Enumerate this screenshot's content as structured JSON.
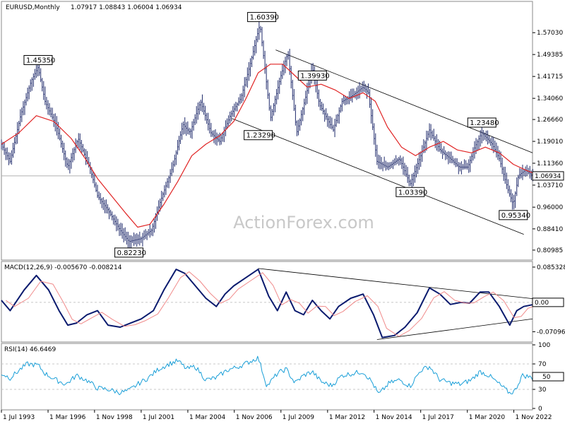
{
  "chart_data": {
    "type": "line",
    "header": {
      "symbol": "EURUSD,Monthly",
      "ohlc": "1.07917 1.08843 1.06004 1.06934",
      "macd": "MACD(12,26,9) -0.005670 -0.008214",
      "rsi": "RSI(14) 46.6469"
    },
    "watermark": "ActionForex.com",
    "price_axis": {
      "range": [
        0.78,
        1.64
      ],
      "ticks": [
        "1.57030",
        "1.49385",
        "1.41715",
        "1.34060",
        "1.26660",
        "1.19010",
        "1.11360",
        "1.03710",
        "0.96000",
        "0.88410",
        "0.80985"
      ],
      "current": "1.06934"
    },
    "macd_axis": {
      "range": [
        -0.0925,
        0.0955
      ],
      "ticks": [
        "0.085328",
        "0.00",
        "-0.070967"
      ],
      "current": "0.00"
    },
    "rsi_axis": {
      "range": [
        0,
        100
      ],
      "ticks": [
        "100",
        "70",
        "30",
        "0"
      ],
      "current": "50"
    },
    "x_axis": {
      "start_year": 1993.5,
      "end_year": 2023.9,
      "labels": [
        {
          "label": "1 Jul 1993",
          "t": 1993.5
        },
        {
          "label": "1 Mar 1996",
          "t": 1996.17
        },
        {
          "label": "1 Nov 1998",
          "t": 1998.83
        },
        {
          "label": "1 Jul 2001",
          "t": 2001.5
        },
        {
          "label": "1 Mar 2004",
          "t": 2004.17
        },
        {
          "label": "1 Nov 2006",
          "t": 2006.83
        },
        {
          "label": "1 Jul 2009",
          "t": 2009.5
        },
        {
          "label": "1 Mar 2012",
          "t": 2012.17
        },
        {
          "label": "1 Nov 2014",
          "t": 2014.83
        },
        {
          "label": "1 Jul 2017",
          "t": 2017.5
        },
        {
          "label": "1 Mar 2020",
          "t": 2020.17
        },
        {
          "label": "1 Nov 2022",
          "t": 2022.83
        }
      ]
    },
    "price_points": [
      [
        1993.5,
        1.18
      ],
      [
        1994.0,
        1.12
      ],
      [
        1994.6,
        1.28
      ],
      [
        1995.2,
        1.4
      ],
      [
        1995.6,
        1.45
      ],
      [
        1996.0,
        1.33
      ],
      [
        1996.6,
        1.25
      ],
      [
        1997.3,
        1.1
      ],
      [
        1997.9,
        1.2
      ],
      [
        1998.6,
        1.09
      ],
      [
        1999.0,
        1.0
      ],
      [
        1999.6,
        0.95
      ],
      [
        2000.3,
        0.88
      ],
      [
        2000.8,
        0.84
      ],
      [
        2001.5,
        0.85
      ],
      [
        2002.1,
        0.88
      ],
      [
        2002.6,
        0.98
      ],
      [
        2003.3,
        1.1
      ],
      [
        2003.9,
        1.25
      ],
      [
        2004.3,
        1.22
      ],
      [
        2004.9,
        1.33
      ],
      [
        2005.5,
        1.22
      ],
      [
        2006.0,
        1.19
      ],
      [
        2006.6,
        1.28
      ],
      [
        2007.2,
        1.34
      ],
      [
        2007.7,
        1.45
      ],
      [
        2008.3,
        1.6
      ],
      [
        2008.9,
        1.27
      ],
      [
        2009.5,
        1.42
      ],
      [
        2009.9,
        1.5
      ],
      [
        2010.4,
        1.22
      ],
      [
        2010.9,
        1.34
      ],
      [
        2011.3,
        1.45
      ],
      [
        2011.7,
        1.32
      ],
      [
        2012.5,
        1.23
      ],
      [
        2013.0,
        1.33
      ],
      [
        2013.6,
        1.35
      ],
      [
        2014.2,
        1.38
      ],
      [
        2014.5,
        1.36
      ],
      [
        2015.0,
        1.12
      ],
      [
        2015.6,
        1.1
      ],
      [
        2016.3,
        1.13
      ],
      [
        2016.9,
        1.04
      ],
      [
        2017.5,
        1.14
      ],
      [
        2018.0,
        1.23
      ],
      [
        2018.6,
        1.16
      ],
      [
        2019.2,
        1.13
      ],
      [
        2019.7,
        1.1
      ],
      [
        2020.2,
        1.1
      ],
      [
        2020.6,
        1.17
      ],
      [
        2021.0,
        1.22
      ],
      [
        2021.6,
        1.18
      ],
      [
        2022.0,
        1.13
      ],
      [
        2022.5,
        1.02
      ],
      [
        2022.8,
        0.97
      ],
      [
        2023.1,
        1.07
      ],
      [
        2023.5,
        1.09
      ],
      [
        2023.9,
        1.069
      ]
    ],
    "sma_points": [
      [
        1993.5,
        1.18
      ],
      [
        1994.5,
        1.22
      ],
      [
        1995.5,
        1.28
      ],
      [
        1996.5,
        1.26
      ],
      [
        1997.5,
        1.2
      ],
      [
        1998.3,
        1.13
      ],
      [
        1999.0,
        1.06
      ],
      [
        1999.8,
        1.0
      ],
      [
        2000.6,
        0.94
      ],
      [
        2001.3,
        0.89
      ],
      [
        2002.0,
        0.9
      ],
      [
        2002.8,
        0.97
      ],
      [
        2003.6,
        1.05
      ],
      [
        2004.4,
        1.14
      ],
      [
        2005.2,
        1.18
      ],
      [
        2006.0,
        1.21
      ],
      [
        2006.8,
        1.26
      ],
      [
        2007.5,
        1.34
      ],
      [
        2008.2,
        1.43
      ],
      [
        2008.9,
        1.46
      ],
      [
        2009.6,
        1.46
      ],
      [
        2010.3,
        1.42
      ],
      [
        2011.0,
        1.38
      ],
      [
        2011.8,
        1.39
      ],
      [
        2012.6,
        1.37
      ],
      [
        2013.4,
        1.34
      ],
      [
        2014.2,
        1.36
      ],
      [
        2014.9,
        1.33
      ],
      [
        2015.6,
        1.24
      ],
      [
        2016.4,
        1.17
      ],
      [
        2017.2,
        1.14
      ],
      [
        2018.0,
        1.17
      ],
      [
        2018.8,
        1.19
      ],
      [
        2019.6,
        1.16
      ],
      [
        2020.4,
        1.15
      ],
      [
        2021.2,
        1.17
      ],
      [
        2022.0,
        1.15
      ],
      [
        2022.8,
        1.11
      ],
      [
        2023.5,
        1.09
      ],
      [
        2023.9,
        1.08
      ]
    ],
    "annotations": [
      {
        "label": "1.60390",
        "t": 2008.4,
        "v": 1.6039
      },
      {
        "label": "1.45350",
        "t": 1995.6,
        "v": 1.4535
      },
      {
        "label": "1.39930",
        "t": 2011.3,
        "v": 1.3993
      },
      {
        "label": "1.23290",
        "t": 2008.2,
        "v": 1.2329
      },
      {
        "label": "1.23480",
        "t": 2021.0,
        "v": 1.2348
      },
      {
        "label": "1.03390",
        "t": 2016.9,
        "v": 1.0339
      },
      {
        "label": "0.95340",
        "t": 2022.8,
        "v": 0.9534
      },
      {
        "label": "0.82230",
        "t": 2000.8,
        "v": 0.8223
      }
    ],
    "trendlines_price": [
      [
        [
          2009.2,
          1.51
        ],
        [
          2023.9,
          1.15
        ]
      ],
      [
        [
          2006.7,
          1.27
        ],
        [
          2023.4,
          0.865
        ]
      ]
    ],
    "macd_points": [
      [
        1993.5,
        0.005
      ],
      [
        1994.0,
        -0.02
      ],
      [
        1994.8,
        0.03
      ],
      [
        1995.5,
        0.065
      ],
      [
        1996.2,
        0.03
      ],
      [
        1996.8,
        -0.02
      ],
      [
        1997.3,
        -0.055
      ],
      [
        1997.8,
        -0.05
      ],
      [
        1998.4,
        -0.03
      ],
      [
        1999.0,
        -0.02
      ],
      [
        1999.6,
        -0.055
      ],
      [
        2000.3,
        -0.06
      ],
      [
        2000.9,
        -0.05
      ],
      [
        2001.5,
        -0.04
      ],
      [
        2002.2,
        -0.02
      ],
      [
        2002.8,
        0.03
      ],
      [
        2003.5,
        0.08
      ],
      [
        2004.0,
        0.07
      ],
      [
        2004.6,
        0.04
      ],
      [
        2005.2,
        0.01
      ],
      [
        2005.8,
        -0.01
      ],
      [
        2006.3,
        0.02
      ],
      [
        2006.8,
        0.04
      ],
      [
        2007.5,
        0.06
      ],
      [
        2008.2,
        0.08
      ],
      [
        2008.8,
        0.015
      ],
      [
        2009.3,
        -0.02
      ],
      [
        2009.8,
        0.025
      ],
      [
        2010.3,
        -0.02
      ],
      [
        2010.8,
        -0.03
      ],
      [
        2011.3,
        0.005
      ],
      [
        2011.8,
        -0.02
      ],
      [
        2012.3,
        -0.04
      ],
      [
        2012.8,
        -0.01
      ],
      [
        2013.5,
        0.01
      ],
      [
        2014.2,
        0.02
      ],
      [
        2014.8,
        -0.03
      ],
      [
        2015.3,
        -0.085
      ],
      [
        2016.0,
        -0.08
      ],
      [
        2016.6,
        -0.06
      ],
      [
        2017.3,
        -0.025
      ],
      [
        2018.0,
        0.035
      ],
      [
        2018.6,
        0.02
      ],
      [
        2019.2,
        -0.005
      ],
      [
        2019.8,
        0.0
      ],
      [
        2020.3,
        -0.002
      ],
      [
        2020.9,
        0.025
      ],
      [
        2021.4,
        0.025
      ],
      [
        2022.0,
        -0.01
      ],
      [
        2022.6,
        -0.055
      ],
      [
        2023.0,
        -0.02
      ],
      [
        2023.4,
        -0.01
      ],
      [
        2023.9,
        -0.0057
      ]
    ],
    "macd_trendlines": [
      [
        [
          2008.2,
          0.082
        ],
        [
          2023.9,
          0.009
        ]
      ],
      [
        [
          2015.0,
          -0.09
        ],
        [
          2023.9,
          -0.04
        ]
      ]
    ],
    "rsi_points": [
      [
        1993.5,
        55
      ],
      [
        1994.0,
        48
      ],
      [
        1994.6,
        62
      ],
      [
        1995.0,
        70
      ],
      [
        1995.6,
        68
      ],
      [
        1996.0,
        55
      ],
      [
        1996.6,
        45
      ],
      [
        1997.2,
        38
      ],
      [
        1997.8,
        52
      ],
      [
        1998.4,
        44
      ],
      [
        1999.0,
        32
      ],
      [
        1999.6,
        30
      ],
      [
        2000.3,
        25
      ],
      [
        2000.8,
        28
      ],
      [
        2001.4,
        40
      ],
      [
        2001.9,
        48
      ],
      [
        2002.5,
        62
      ],
      [
        2003.1,
        70
      ],
      [
        2003.6,
        75
      ],
      [
        2004.1,
        62
      ],
      [
        2004.6,
        66
      ],
      [
        2005.2,
        45
      ],
      [
        2005.8,
        48
      ],
      [
        2006.4,
        60
      ],
      [
        2007.0,
        65
      ],
      [
        2007.6,
        72
      ],
      [
        2008.2,
        80
      ],
      [
        2008.7,
        35
      ],
      [
        2009.3,
        55
      ],
      [
        2009.8,
        62
      ],
      [
        2010.3,
        40
      ],
      [
        2010.8,
        52
      ],
      [
        2011.3,
        58
      ],
      [
        2011.8,
        42
      ],
      [
        2012.4,
        36
      ],
      [
        2013.0,
        52
      ],
      [
        2013.6,
        55
      ],
      [
        2014.2,
        58
      ],
      [
        2014.7,
        42
      ],
      [
        2015.1,
        22
      ],
      [
        2015.7,
        40
      ],
      [
        2016.3,
        45
      ],
      [
        2016.9,
        35
      ],
      [
        2017.5,
        60
      ],
      [
        2018.0,
        66
      ],
      [
        2018.6,
        45
      ],
      [
        2019.2,
        40
      ],
      [
        2019.8,
        38
      ],
      [
        2020.4,
        45
      ],
      [
        2020.9,
        58
      ],
      [
        2021.4,
        52
      ],
      [
        2022.0,
        38
      ],
      [
        2022.6,
        24
      ],
      [
        2022.9,
        28
      ],
      [
        2023.3,
        52
      ],
      [
        2023.7,
        50
      ],
      [
        2023.9,
        46.6
      ]
    ],
    "colors": {
      "price": "#1f2a6b",
      "sma": "#e02424",
      "macd": "#0a1a6e",
      "macd_signal": "#f08a8a",
      "rsi": "#1a9fd8",
      "grid": "#c8c8c8",
      "trend": "#000000"
    }
  }
}
